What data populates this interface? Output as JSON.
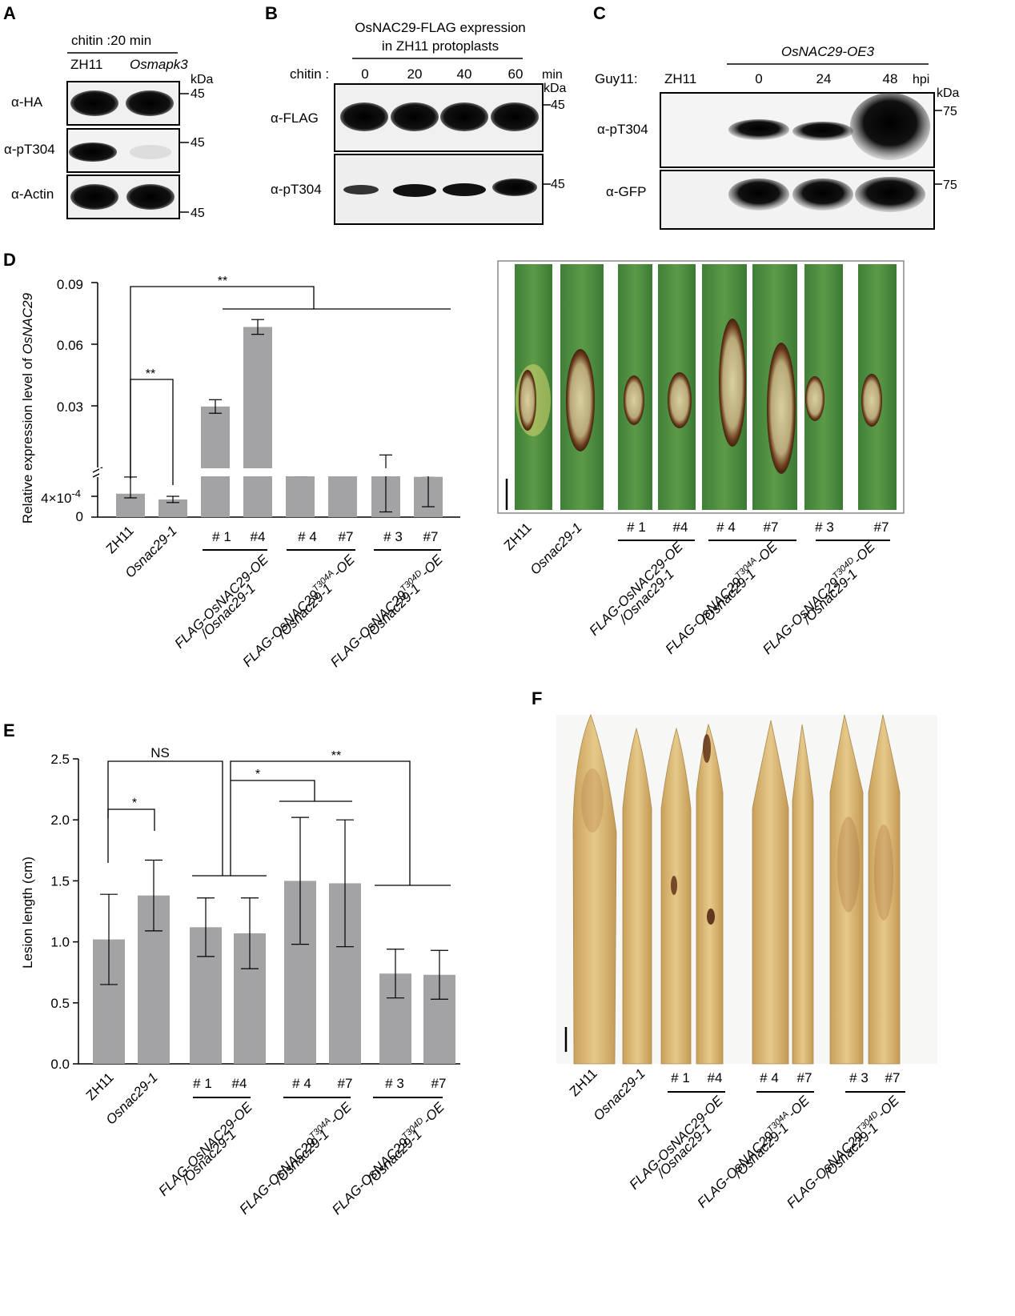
{
  "panels": {
    "A": {
      "letter": "A",
      "header": "chitin :20 min",
      "lanes": [
        "ZH11",
        "Osmapk3"
      ],
      "kda": "kDa",
      "blots": [
        {
          "label": "α-HA",
          "marker": "45"
        },
        {
          "label": "α-pT304",
          "marker": "45"
        },
        {
          "label": "α-Actin",
          "marker": "45"
        }
      ]
    },
    "B": {
      "letter": "B",
      "header_line1": "OsNAC29-FLAG expression",
      "header_line2": "in ZH11 protoplasts",
      "chitin_label": "chitin :",
      "timepoints": [
        "0",
        "20",
        "40",
        "60"
      ],
      "unit": "min",
      "kda": "kDa",
      "blots": [
        {
          "label": "α-FLAG",
          "marker": "45"
        },
        {
          "label": "α-pT304",
          "marker": "45"
        }
      ]
    },
    "C": {
      "letter": "C",
      "header": "OsNAC29-OE3",
      "guy_label": "Guy11:",
      "control_lane": "ZH11",
      "timepoints": [
        "0",
        "24",
        "48"
      ],
      "unit": "hpi",
      "kda": "kDa",
      "blots": [
        {
          "label": "α-pT304",
          "marker": "75"
        },
        {
          "label": "α-GFP",
          "marker": "75"
        }
      ]
    },
    "D": {
      "letter": "D"
    },
    "E": {
      "letter": "E"
    },
    "F": {
      "letter": "F"
    }
  },
  "genotypes": {
    "wt": "ZH11",
    "mutant": "Osnac29-1",
    "groups": [
      {
        "lines": [
          "# 1",
          "#4"
        ],
        "name": "FLAG-OsNAC29-OE",
        "sup": "",
        "suffix": "",
        "bg": "/Osnac29-1"
      },
      {
        "lines": [
          "# 4",
          "#7"
        ],
        "name": "FLAG-OsNAC29",
        "sup": "T304A",
        "suffix": "-OE",
        "bg": "/Osnac29-1"
      },
      {
        "lines": [
          "# 3",
          "#7"
        ],
        "name": "FLAG-OsNAC29",
        "sup": "T304D",
        "suffix": "-OE",
        "bg": "/Osnac29-1"
      }
    ]
  },
  "chart_data": [
    {
      "panel": "D",
      "type": "bar",
      "categories": [
        "ZH11",
        "Osnac29-1",
        "# 1",
        "#4",
        "# 4",
        "#7",
        "# 3",
        "#7"
      ],
      "values": [
        0.00045,
        0.00034,
        0.0297,
        0.0684,
        0.0013,
        0.0028,
        0.0031,
        0.0006
      ],
      "errors": [
        8e-05,
        6e-05,
        0.0033,
        0.0036,
        0.0003,
        0.001,
        0.003,
        0.0004
      ],
      "ylabel_prefix": "Relative expression level of ",
      "ylabel_gene": "OsNAC29",
      "y_ticks": [
        "0.09",
        "0.06",
        "0.03",
        "4×10",
        "-4",
        "0"
      ],
      "axis_break": true,
      "significance": [
        "**",
        "**"
      ],
      "bar_color": "#a3a3a6"
    },
    {
      "panel": "E",
      "type": "bar",
      "categories": [
        "ZH11",
        "Osnac29-1",
        "# 1",
        "#4",
        "# 4",
        "#7",
        "# 3",
        "#7"
      ],
      "values": [
        1.02,
        1.38,
        1.12,
        1.07,
        1.5,
        1.48,
        0.74,
        0.73
      ],
      "errors": [
        0.37,
        0.29,
        0.24,
        0.29,
        0.52,
        0.52,
        0.2,
        0.2
      ],
      "ylabel": "Lesion length (cm)",
      "ylim": [
        0,
        2.5
      ],
      "yticks": [
        "0.0",
        "0.5",
        "1.0",
        "1.5",
        "2.0",
        "2.5"
      ],
      "significance": [
        "*",
        "NS",
        "*",
        "**"
      ],
      "bar_color": "#a3a3a6"
    }
  ]
}
